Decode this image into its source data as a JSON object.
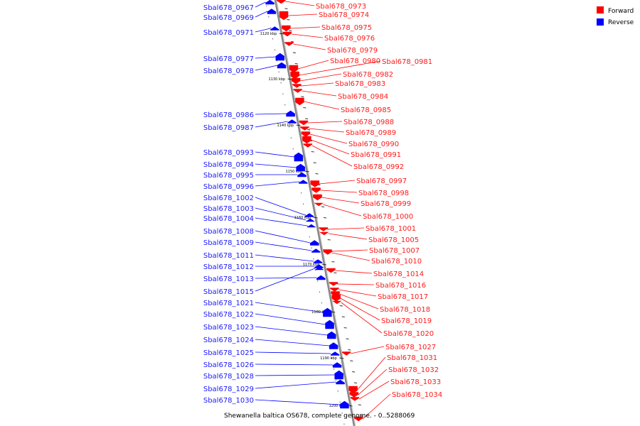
{
  "caption": "Shewanella baltica OS678, complete genome. - 0..5288069",
  "legend": [
    {
      "label": "Forward",
      "color": "#ff0000"
    },
    {
      "label": "Reverse",
      "color": "#0000ff"
    }
  ],
  "colors": {
    "forward": "#ff0000",
    "reverse": "#0000ff",
    "backbone": "#888888"
  },
  "kbp_ticks": [
    "1120 kbp",
    "1130 kbp",
    "1140 kbp",
    "1150 kbp",
    "1160 kbp",
    "1170 kbp",
    "1180 kbp",
    "1190 kbp",
    "1200 kbp"
  ],
  "reverse_genes": [
    "Sbal678_0967",
    "Sbal678_0969",
    "Sbal678_0971",
    "Sbal678_0977",
    "Sbal678_0978",
    "Sbal678_0986",
    "Sbal678_0987",
    "Sbal678_0993",
    "Sbal678_0994",
    "Sbal678_0995",
    "Sbal678_0996",
    "Sbal678_1002",
    "Sbal678_1003",
    "Sbal678_1004",
    "Sbal678_1008",
    "Sbal678_1009",
    "Sbal678_1011",
    "Sbal678_1012",
    "Sbal678_1013",
    "Sbal678_1015",
    "Sbal678_1021",
    "Sbal678_1022",
    "Sbal678_1023",
    "Sbal678_1024",
    "Sbal678_1025",
    "Sbal678_1026",
    "Sbal678_1028",
    "Sbal678_1029",
    "Sbal678_1030"
  ],
  "forward_genes": [
    "Sbal678_0973",
    "Sbal678_0974",
    "Sbal678_0975",
    "Sbal678_0976",
    "Sbal678_0979",
    "Sbal678_0980",
    "Sbal678_0981",
    "Sbal678_0982",
    "Sbal678_0983",
    "Sbal678_0984",
    "Sbal678_0985",
    "Sbal678_0988",
    "Sbal678_0989",
    "Sbal678_0990",
    "Sbal678_0991",
    "Sbal678_0992",
    "Sbal678_0997",
    "Sbal678_0998",
    "Sbal678_0999",
    "Sbal678_1000",
    "Sbal678_1001",
    "Sbal678_1005",
    "Sbal678_1007",
    "Sbal678_1010",
    "Sbal678_1014",
    "Sbal678_1016",
    "Sbal678_1017",
    "Sbal678_1018",
    "Sbal678_1019",
    "Sbal678_1020",
    "Sbal678_1027",
    "Sbal678_1031",
    "Sbal678_1032",
    "Sbal678_1033",
    "Sbal678_1034"
  ]
}
